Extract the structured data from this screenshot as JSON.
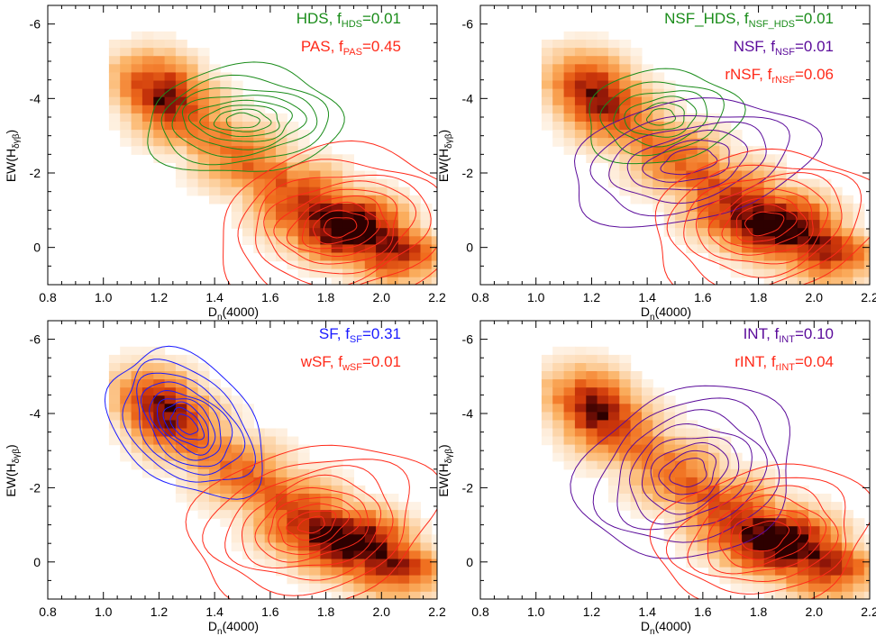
{
  "chart_data": [
    {
      "type": "heatmap",
      "panel": "top-left",
      "xlabel": "D_n(4000)",
      "ylabel": "EW(H_δγβ)",
      "xlim": [
        0.8,
        2.2
      ],
      "ylim": [
        1.0,
        -6.5
      ],
      "y_axis_inverted": true,
      "xticks": [
        "0.8",
        "1.0",
        "1.2",
        "1.4",
        "1.6",
        "1.8",
        "2.0",
        "2.2"
      ],
      "yticks": [
        "-6",
        "-4",
        "-2",
        "0"
      ],
      "density_ridge": [
        [
          1.15,
          -4.5
        ],
        [
          1.3,
          -3.5
        ],
        [
          1.5,
          -2.4
        ],
        [
          1.7,
          -1.4
        ],
        [
          1.9,
          -0.5
        ],
        [
          2.05,
          0.0
        ]
      ],
      "density_peak": [
        1.85,
        -0.5
      ],
      "legend": [
        {
          "label": "HDS, ",
          "f_sub": "HDS",
          "value": "=0.01",
          "color": "#1a8c1a"
        },
        {
          "label": "PAS, ",
          "f_sub": "PAS",
          "value": "=0.45",
          "color": "#ff2a1a"
        }
      ],
      "contour_sets": [
        {
          "name": "HDS",
          "color": "#1a8c1a",
          "center": [
            1.5,
            -3.4
          ],
          "levels": [
            [
              0.35,
              1.45,
              -6
            ],
            [
              0.3,
              1.15,
              -4
            ],
            [
              0.26,
              0.9,
              -2.5
            ],
            [
              0.22,
              0.72,
              0
            ],
            [
              0.18,
              0.55,
              0
            ],
            [
              0.14,
              0.42,
              0
            ],
            [
              0.1,
              0.3,
              0
            ],
            [
              0.06,
              0.2,
              0
            ]
          ]
        },
        {
          "name": "PAS",
          "color": "#ff2a1a",
          "center": [
            1.85,
            -0.55
          ],
          "levels": [
            [
              0.45,
              2.1,
              -14
            ],
            [
              0.38,
              1.75,
              -14
            ],
            [
              0.32,
              1.45,
              -14
            ],
            [
              0.27,
              1.2,
              -14
            ],
            [
              0.22,
              0.98,
              -14
            ],
            [
              0.18,
              0.78,
              -14
            ],
            [
              0.14,
              0.6,
              -14
            ],
            [
              0.1,
              0.42,
              -14
            ],
            [
              0.06,
              0.26,
              -14
            ]
          ]
        }
      ]
    },
    {
      "type": "heatmap",
      "panel": "top-right",
      "xlabel": "D_n(4000)",
      "ylabel": "EW(H_δγβ)",
      "xlim": [
        0.8,
        2.2
      ],
      "ylim": [
        1.0,
        -6.5
      ],
      "y_axis_inverted": true,
      "xticks": [
        "0.8",
        "1.0",
        "1.2",
        "1.4",
        "1.6",
        "1.8",
        "2.0",
        "2.2"
      ],
      "yticks": [
        "-6",
        "-4",
        "-2",
        "0"
      ],
      "density_ridge": [
        [
          1.15,
          -4.5
        ],
        [
          1.3,
          -3.5
        ],
        [
          1.5,
          -2.4
        ],
        [
          1.7,
          -1.4
        ],
        [
          1.9,
          -0.5
        ],
        [
          2.05,
          0.0
        ]
      ],
      "density_peak": [
        1.82,
        -0.6
      ],
      "legend": [
        {
          "label": "NSF_HDS, ",
          "f_sub": "NSF_HDS",
          "value": "=0.01",
          "color": "#1a8c1a"
        },
        {
          "label": "NSF, ",
          "f_sub": "NSF",
          "value": "=0.01",
          "color": "#5a0a9a"
        },
        {
          "label": "rNSF, ",
          "f_sub": "rNSF",
          "value": "=0.06",
          "color": "#ff2a1a"
        }
      ],
      "contour_sets": [
        {
          "name": "NSF_HDS",
          "color": "#1a8c1a",
          "center": [
            1.45,
            -3.5
          ],
          "levels": [
            [
              0.28,
              1.25,
              -10
            ],
            [
              0.22,
              0.95,
              -10
            ],
            [
              0.17,
              0.72,
              -10
            ],
            [
              0.13,
              0.52,
              -10
            ],
            [
              0.09,
              0.36,
              -10
            ],
            [
              0.05,
              0.22,
              -10
            ]
          ]
        },
        {
          "name": "NSF",
          "color": "#5a0a9a",
          "center": [
            1.55,
            -2.3
          ],
          "levels": [
            [
              0.45,
              1.6,
              -15
            ],
            [
              0.36,
              1.25,
              -15
            ],
            [
              0.29,
              0.98,
              -15
            ],
            [
              0.22,
              0.74,
              -15
            ],
            [
              0.16,
              0.52,
              -15
            ],
            [
              0.1,
              0.32,
              -15
            ]
          ]
        },
        {
          "name": "rNSF",
          "color": "#ff2a1a",
          "center": [
            1.82,
            -0.65
          ],
          "levels": [
            [
              0.42,
              1.9,
              -16
            ],
            [
              0.35,
              1.6,
              -16
            ],
            [
              0.29,
              1.32,
              -16
            ],
            [
              0.24,
              1.08,
              -16
            ],
            [
              0.19,
              0.86,
              -16
            ],
            [
              0.15,
              0.66,
              -16
            ],
            [
              0.11,
              0.48,
              -16
            ],
            [
              0.07,
              0.3,
              -16
            ]
          ]
        }
      ]
    },
    {
      "type": "heatmap",
      "panel": "bottom-left",
      "xlabel": "D_n(4000)",
      "ylabel": "EW(H_δγβ)",
      "xlim": [
        0.8,
        2.2
      ],
      "ylim": [
        1.0,
        -6.5
      ],
      "y_axis_inverted": true,
      "xticks": [
        "0.8",
        "1.0",
        "1.2",
        "1.4",
        "1.6",
        "1.8",
        "2.0",
        "2.2"
      ],
      "yticks": [
        "-6",
        "-4",
        "-2",
        "0"
      ],
      "density_ridge": [
        [
          1.15,
          -4.5
        ],
        [
          1.3,
          -3.5
        ],
        [
          1.5,
          -2.4
        ],
        [
          1.7,
          -1.4
        ],
        [
          1.9,
          -0.5
        ],
        [
          2.05,
          0.0
        ]
      ],
      "density_peak": [
        1.85,
        -0.55
      ],
      "legend": [
        {
          "label": "SF, ",
          "f_sub": "SF",
          "value": "=0.31",
          "color": "#1a1aff"
        },
        {
          "label": "wSF, ",
          "f_sub": "wSF",
          "value": "=0.01",
          "color": "#ff2a1a"
        }
      ],
      "contour_sets": [
        {
          "name": "SF",
          "color": "#1a1aff",
          "center": [
            1.3,
            -3.7
          ],
          "levels": [
            [
              0.36,
              1.55,
              55
            ],
            [
              0.3,
              1.25,
              55
            ],
            [
              0.25,
              1.02,
              55
            ],
            [
              0.21,
              0.84,
              55
            ],
            [
              0.17,
              0.68,
              55
            ],
            [
              0.14,
              0.54,
              55
            ],
            [
              0.11,
              0.42,
              55
            ],
            [
              0.08,
              0.3,
              55
            ],
            [
              0.05,
              0.19,
              55
            ]
          ]
        },
        {
          "name": "wSF",
          "color": "#ff2a1a",
          "center": [
            1.75,
            -1.0
          ],
          "levels": [
            [
              0.46,
              2.1,
              -22
            ],
            [
              0.38,
              1.72,
              -22
            ],
            [
              0.31,
              1.42,
              -22
            ],
            [
              0.26,
              1.16,
              -22
            ],
            [
              0.21,
              0.92,
              -22
            ],
            [
              0.17,
              0.72,
              -22
            ],
            [
              0.13,
              0.54,
              -22
            ],
            [
              0.09,
              0.36,
              -22
            ],
            [
              0.05,
              0.2,
              -22
            ]
          ]
        }
      ]
    },
    {
      "type": "heatmap",
      "panel": "bottom-right",
      "xlabel": "D_n(4000)",
      "ylabel": "EW(H_δγβ)",
      "xlim": [
        0.8,
        2.2
      ],
      "ylim": [
        1.0,
        -6.5
      ],
      "y_axis_inverted": true,
      "xticks": [
        "0.8",
        "1.0",
        "1.2",
        "1.4",
        "1.6",
        "1.8",
        "2.0",
        "2.2"
      ],
      "yticks": [
        "-6",
        "-4",
        "-2",
        "0"
      ],
      "density_ridge": [
        [
          1.15,
          -4.5
        ],
        [
          1.3,
          -3.5
        ],
        [
          1.5,
          -2.4
        ],
        [
          1.7,
          -1.4
        ],
        [
          1.9,
          -0.5
        ],
        [
          2.05,
          0.0
        ]
      ],
      "density_peak": [
        1.85,
        -0.5
      ],
      "legend": [
        {
          "label": "INT, ",
          "f_sub": "INT",
          "value": "=0.10",
          "color": "#5a0a9a"
        },
        {
          "label": "rINT, ",
          "f_sub": "rINT",
          "value": "=0.04",
          "color": "#ff2a1a"
        }
      ],
      "contour_sets": [
        {
          "name": "INT",
          "color": "#5a0a9a",
          "center": [
            1.55,
            -2.4
          ],
          "levels": [
            [
              0.42,
              2.2,
              -38
            ],
            [
              0.35,
              1.8,
              -38
            ],
            [
              0.29,
              1.48,
              -38
            ],
            [
              0.24,
              1.2,
              -38
            ],
            [
              0.19,
              0.95,
              -38
            ],
            [
              0.15,
              0.74,
              -38
            ],
            [
              0.11,
              0.54,
              -38
            ],
            [
              0.07,
              0.36,
              -38
            ]
          ]
        },
        {
          "name": "rINT",
          "color": "#ff2a1a",
          "center": [
            1.82,
            -0.7
          ],
          "levels": [
            [
              0.4,
              1.85,
              -20
            ],
            [
              0.33,
              1.5,
              -20
            ],
            [
              0.27,
              1.22,
              -20
            ],
            [
              0.22,
              0.98,
              -20
            ],
            [
              0.17,
              0.76,
              -20
            ],
            [
              0.13,
              0.56,
              -20
            ],
            [
              0.09,
              0.38,
              -20
            ]
          ]
        }
      ]
    }
  ]
}
